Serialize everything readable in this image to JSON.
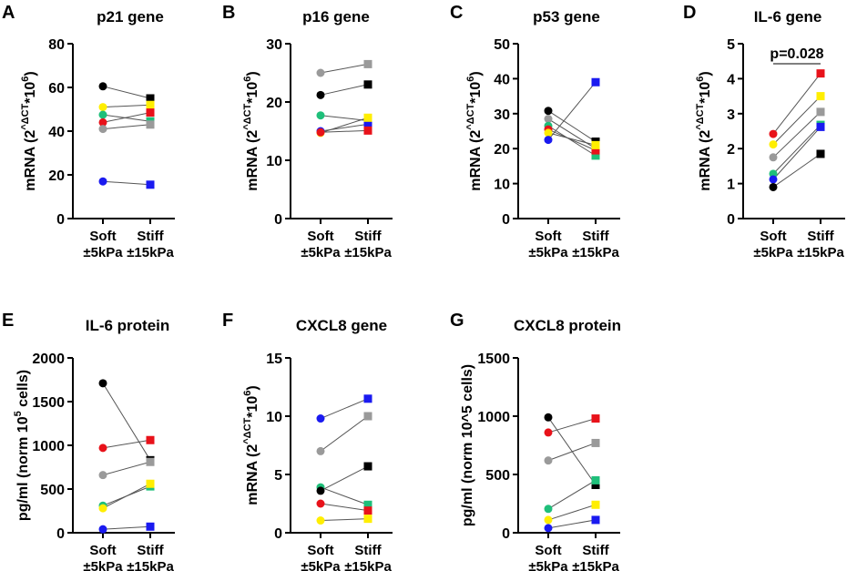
{
  "figure": {
    "x_categories": [
      {
        "line1": "Soft",
        "line2": "±5kPa"
      },
      {
        "line1": "Stiff",
        "line2": "±15kPa"
      }
    ],
    "donor_colors": {
      "black": "#000000",
      "red": "#e8121a",
      "gray": "#9a9a9a",
      "green": "#1fbf7a",
      "yellow": "#ffee00",
      "blue": "#1a1af0"
    }
  },
  "chart_data": [
    {
      "panel_letter": "A",
      "title": "p21 gene",
      "type": "scatter",
      "ylabel": {
        "prefix": "mRNA (2",
        "sup": "^ΔCT",
        "mid": "*10",
        "sup2": "6",
        "suffix": ")"
      },
      "ylim": [
        0,
        80
      ],
      "ticks": [
        0,
        20,
        40,
        60,
        80
      ],
      "tick_labels": [
        "0",
        "20",
        "40",
        "60",
        "80"
      ],
      "categories": [
        "Soft ±5kPa",
        "Stiff ±15kPa"
      ],
      "series": [
        {
          "name": "black",
          "color": "#000000",
          "values": [
            60.5,
            55
          ]
        },
        {
          "name": "yellow",
          "color": "#ffee00",
          "values": [
            51,
            52
          ]
        },
        {
          "name": "green",
          "color": "#1fbf7a",
          "values": [
            47.5,
            44.5
          ]
        },
        {
          "name": "red",
          "color": "#e8121a",
          "values": [
            44,
            48.5
          ]
        },
        {
          "name": "gray",
          "color": "#9a9a9a",
          "values": [
            41,
            43
          ]
        },
        {
          "name": "blue",
          "color": "#1a1af0",
          "values": [
            17,
            15.5
          ]
        }
      ]
    },
    {
      "panel_letter": "B",
      "title": "p16 gene",
      "type": "scatter",
      "ylabel": {
        "prefix": "mRNA (2",
        "sup": "^ΔCT",
        "mid": "*10",
        "sup2": "6",
        "suffix": ")"
      },
      "ylim": [
        0,
        30
      ],
      "ticks": [
        0,
        10,
        20,
        30
      ],
      "tick_labels": [
        "0",
        "10",
        "20",
        "30"
      ],
      "categories": [
        "Soft ±5kPa",
        "Stiff ±15kPa"
      ],
      "series": [
        {
          "name": "gray",
          "color": "#9a9a9a",
          "values": [
            25,
            26.5
          ]
        },
        {
          "name": "black",
          "color": "#000000",
          "values": [
            21.2,
            23
          ]
        },
        {
          "name": "green",
          "color": "#1fbf7a",
          "values": [
            17.7,
            16.8
          ]
        },
        {
          "name": "blue",
          "color": "#1a1af0",
          "values": [
            15,
            16.2
          ]
        },
        {
          "name": "yellow",
          "color": "#ffee00",
          "values": [
            14.7,
            17.3
          ]
        },
        {
          "name": "red",
          "color": "#e8121a",
          "values": [
            14.8,
            15.1
          ]
        }
      ]
    },
    {
      "panel_letter": "C",
      "title": "p53 gene",
      "type": "scatter",
      "ylabel": {
        "prefix": "mRNA (2",
        "sup": "^ΔCT",
        "mid": "*10",
        "sup2": "6",
        "suffix": ")"
      },
      "ylim": [
        0,
        50
      ],
      "ticks": [
        0,
        10,
        20,
        30,
        40,
        50
      ],
      "tick_labels": [
        "0",
        "10",
        "20",
        "30",
        "40",
        "50"
      ],
      "categories": [
        "Soft ±5kPa",
        "Stiff ±15kPa"
      ],
      "series": [
        {
          "name": "black",
          "color": "#000000",
          "values": [
            30.8,
            22
          ]
        },
        {
          "name": "gray",
          "color": "#9a9a9a",
          "values": [
            28.5,
            20
          ]
        },
        {
          "name": "green",
          "color": "#1fbf7a",
          "values": [
            26.5,
            18
          ]
        },
        {
          "name": "red",
          "color": "#e8121a",
          "values": [
            25.5,
            19.5
          ]
        },
        {
          "name": "yellow",
          "color": "#ffee00",
          "values": [
            24.5,
            21
          ]
        },
        {
          "name": "blue",
          "color": "#1a1af0",
          "values": [
            22.5,
            39
          ]
        }
      ]
    },
    {
      "panel_letter": "D",
      "title": "IL-6 gene",
      "type": "scatter",
      "ylabel": {
        "prefix": "mRNA (2",
        "sup": "^ΔCT",
        "mid": "*10",
        "sup2": "6",
        "suffix": ")"
      },
      "ylim": [
        0,
        5
      ],
      "ticks": [
        0,
        1,
        2,
        3,
        4,
        5
      ],
      "tick_labels": [
        "0",
        "1",
        "2",
        "3",
        "4",
        "5"
      ],
      "categories": [
        "Soft ±5kPa",
        "Stiff ±15kPa"
      ],
      "annotation": "p=0.028",
      "series": [
        {
          "name": "red",
          "color": "#e8121a",
          "values": [
            2.42,
            4.15
          ]
        },
        {
          "name": "yellow",
          "color": "#ffee00",
          "values": [
            2.12,
            3.5
          ]
        },
        {
          "name": "gray",
          "color": "#9a9a9a",
          "values": [
            1.75,
            3.05
          ]
        },
        {
          "name": "green",
          "color": "#1fbf7a",
          "values": [
            1.28,
            2.68
          ]
        },
        {
          "name": "blue",
          "color": "#1a1af0",
          "values": [
            1.12,
            2.62
          ]
        },
        {
          "name": "black",
          "color": "#000000",
          "values": [
            0.9,
            1.85
          ]
        }
      ]
    },
    {
      "panel_letter": "E",
      "title": "IL-6 protein",
      "type": "scatter",
      "ylabel": {
        "prefix": "pg/ml (norm 10",
        "sup": "5",
        "suffix": " cells)"
      },
      "ylim": [
        0,
        2000
      ],
      "ticks": [
        0,
        500,
        1000,
        1500,
        2000
      ],
      "tick_labels": [
        "0",
        "500",
        "1000",
        "1500",
        "2000"
      ],
      "categories": [
        "Soft ±5kPa",
        "Stiff ±15kPa"
      ],
      "series": [
        {
          "name": "black",
          "color": "#000000",
          "values": [
            1710,
            830
          ]
        },
        {
          "name": "red",
          "color": "#e8121a",
          "values": [
            970,
            1060
          ]
        },
        {
          "name": "gray",
          "color": "#9a9a9a",
          "values": [
            660,
            810
          ]
        },
        {
          "name": "green",
          "color": "#1fbf7a",
          "values": [
            310,
            530
          ]
        },
        {
          "name": "yellow",
          "color": "#ffee00",
          "values": [
            280,
            560
          ]
        },
        {
          "name": "blue",
          "color": "#1a1af0",
          "values": [
            40,
            70
          ]
        }
      ]
    },
    {
      "panel_letter": "F",
      "title": "CXCL8 gene",
      "type": "scatter",
      "ylabel": {
        "prefix": "mRNA (2",
        "sup": "^ΔCT",
        "mid": "*10",
        "sup2": "6",
        "suffix": ")"
      },
      "ylim": [
        0,
        15
      ],
      "ticks": [
        0,
        5,
        10,
        15
      ],
      "tick_labels": [
        "0",
        "5",
        "10",
        "15"
      ],
      "categories": [
        "Soft ±5kPa",
        "Stiff ±15kPa"
      ],
      "series": [
        {
          "name": "blue",
          "color": "#1a1af0",
          "values": [
            9.8,
            11.5
          ]
        },
        {
          "name": "gray",
          "color": "#9a9a9a",
          "values": [
            7,
            10
          ]
        },
        {
          "name": "green",
          "color": "#1fbf7a",
          "values": [
            3.9,
            2.4
          ]
        },
        {
          "name": "black",
          "color": "#000000",
          "values": [
            3.6,
            5.7
          ]
        },
        {
          "name": "red",
          "color": "#e8121a",
          "values": [
            2.5,
            1.9
          ]
        },
        {
          "name": "yellow",
          "color": "#ffee00",
          "values": [
            1.05,
            1.2
          ]
        }
      ]
    },
    {
      "panel_letter": "G",
      "title": "CXCL8 protein",
      "type": "scatter",
      "ylabel": {
        "prefix": "pg/ml (norm 10^5 cells)"
      },
      "ylim": [
        0,
        1500
      ],
      "ticks": [
        0,
        500,
        1000,
        1500
      ],
      "tick_labels": [
        "0",
        "500",
        "1000",
        "1500"
      ],
      "categories": [
        "Soft ±5kPa",
        "Stiff ±15kPa"
      ],
      "series": [
        {
          "name": "black",
          "color": "#000000",
          "values": [
            990,
            410
          ]
        },
        {
          "name": "red",
          "color": "#e8121a",
          "values": [
            860,
            980
          ]
        },
        {
          "name": "gray",
          "color": "#9a9a9a",
          "values": [
            620,
            770
          ]
        },
        {
          "name": "green",
          "color": "#1fbf7a",
          "values": [
            205,
            450
          ]
        },
        {
          "name": "yellow",
          "color": "#ffee00",
          "values": [
            110,
            240
          ]
        },
        {
          "name": "blue",
          "color": "#1a1af0",
          "values": [
            40,
            110
          ]
        }
      ]
    }
  ]
}
